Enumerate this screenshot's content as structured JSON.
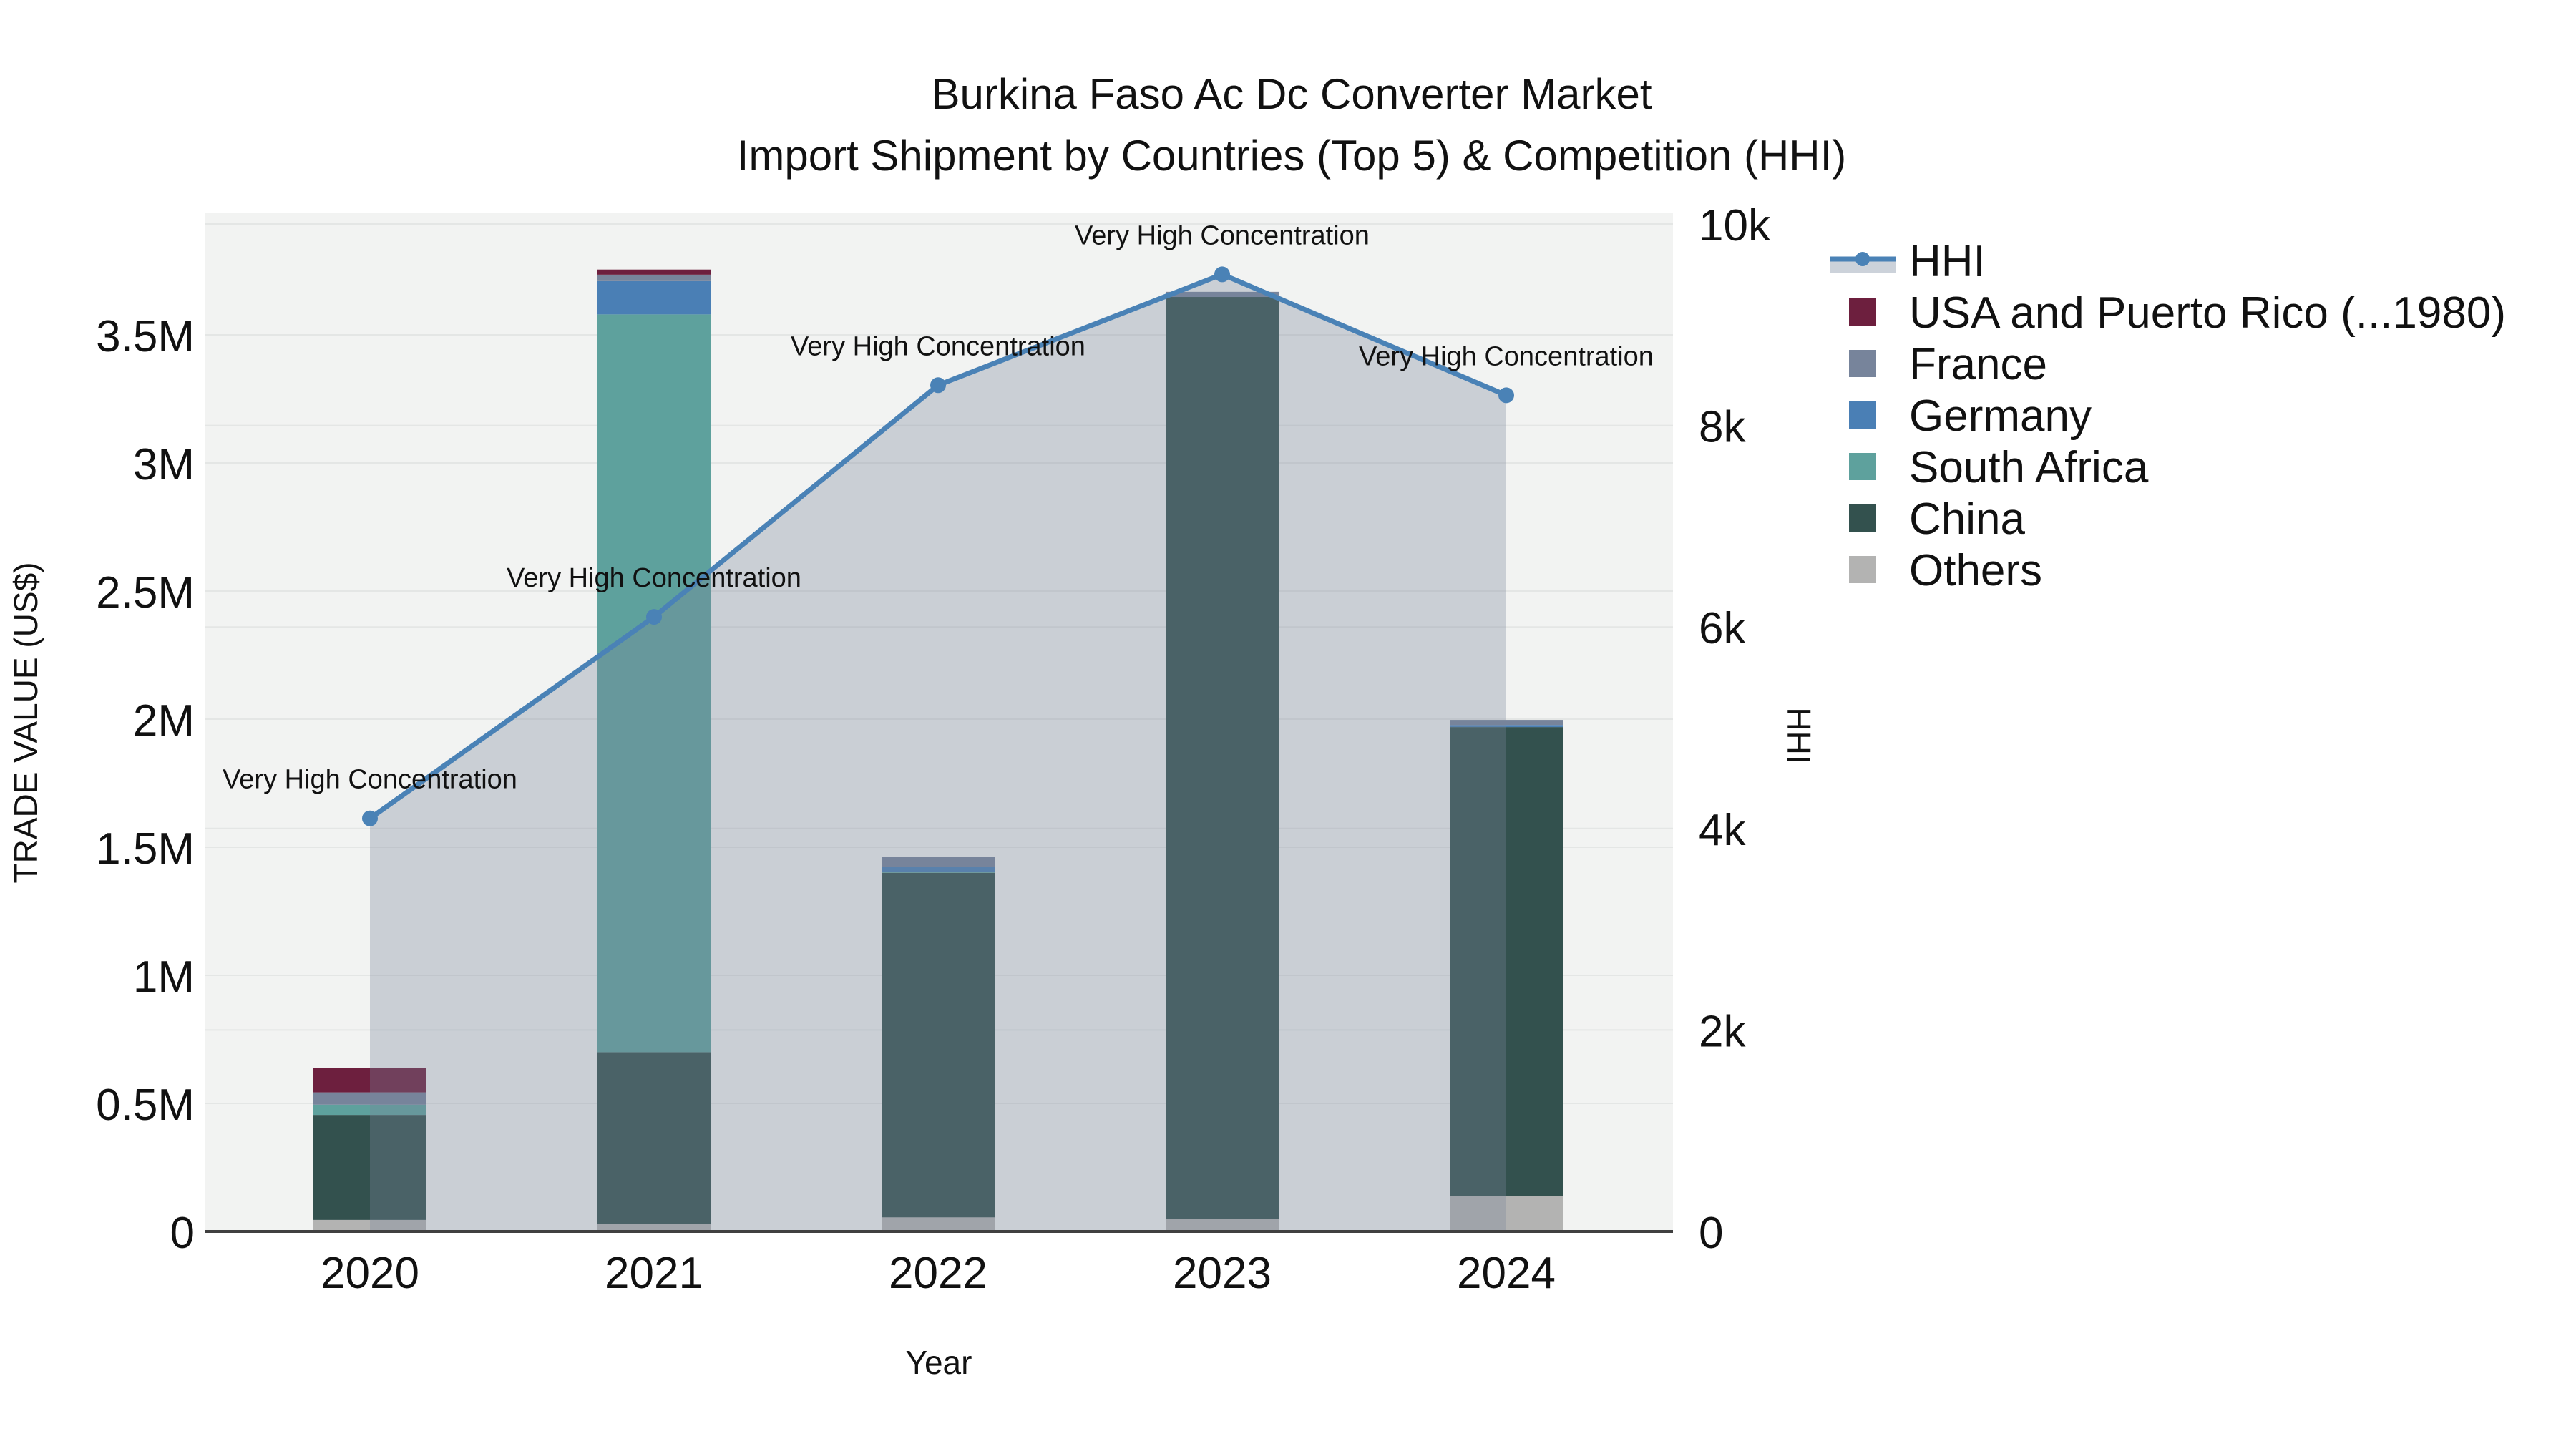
{
  "title": {
    "line1": "Burkina Faso Ac Dc Converter Market",
    "line2": "Import Shipment by Countries (Top 5) & Competition (HHI)"
  },
  "chart_data": {
    "type": "combo: stacked-bar (left axis) + line-area (right axis)",
    "x_categories": [
      "2020",
      "2021",
      "2022",
      "2023",
      "2024"
    ],
    "x_axis": {
      "title": "Year"
    },
    "left_axis": {
      "title": "TRADE VALUE (US$)",
      "tick_labels": [
        "0",
        "0.5M",
        "1M",
        "1.5M",
        "2M",
        "2.5M",
        "3M",
        "3.5M"
      ],
      "tick_values": [
        0,
        500000,
        1000000,
        1500000,
        2000000,
        2500000,
        3000000,
        3500000
      ],
      "range": [
        0,
        3975000
      ],
      "grid": true
    },
    "right_axis": {
      "title": "HHI",
      "tick_labels": [
        "0",
        "2k",
        "4k",
        "6k",
        "8k",
        "10k"
      ],
      "tick_values": [
        0,
        2000,
        4000,
        6000,
        8000,
        10000
      ],
      "range": [
        0,
        10100
      ],
      "grid": true
    },
    "bar_series_stack_bottom_to_top": [
      {
        "name": "Others",
        "color": "#b3b3b2",
        "values_usd": [
          45000,
          30000,
          55000,
          48000,
          137000
        ]
      },
      {
        "name": "China",
        "color": "#33514e",
        "values_usd": [
          410000,
          670000,
          1345000,
          3600000,
          1832000
        ]
      },
      {
        "name": "South Africa",
        "color": "#5ea19d",
        "values_usd": [
          40000,
          2880000,
          5000,
          0,
          0
        ]
      },
      {
        "name": "Germany",
        "color": "#4a7fb5",
        "values_usd": [
          0,
          130000,
          18000,
          0,
          8000
        ]
      },
      {
        "name": "France",
        "color": "#77849b",
        "values_usd": [
          48000,
          25000,
          40000,
          20000,
          20000
        ]
      },
      {
        "name": "USA and Puerto Rico (...1980)",
        "color": "#6d1f3e",
        "values_usd": [
          95000,
          20000,
          0,
          0,
          0
        ]
      }
    ],
    "bar_totals_usd": [
      638000,
      3755000,
      1463000,
      3668000,
      1997000
    ],
    "line_series": {
      "name": "HHI",
      "axis": "right",
      "color": "#4a82b6",
      "area_fill": "rgba(121,134,156,0.33)",
      "values": [
        4100,
        6100,
        8400,
        9500,
        8300
      ]
    },
    "annotations": [
      "Very High Concentration",
      "Very High Concentration",
      "Very High Concentration",
      "Very High Concentration",
      "Very High Concentration"
    ],
    "legend": {
      "position": "top-right",
      "items": [
        {
          "label": "HHI",
          "type": "line",
          "color": "#4a82b6",
          "band": "#ccd2da"
        },
        {
          "label": "USA and Puerto Rico (...1980)",
          "type": "swatch",
          "color": "#6d1f3e"
        },
        {
          "label": "France",
          "type": "swatch",
          "color": "#77849b"
        },
        {
          "label": "Germany",
          "type": "swatch",
          "color": "#4a7fb5"
        },
        {
          "label": "South Africa",
          "type": "swatch",
          "color": "#5ea19d"
        },
        {
          "label": "China",
          "type": "swatch",
          "color": "#33514e"
        },
        {
          "label": "Others",
          "type": "swatch",
          "color": "#b3b3b2"
        }
      ]
    },
    "style": {
      "plot_bg": "#f2f3f2",
      "gridline": "#e4e6e5",
      "axis_line": "#404040",
      "text": "#111111"
    }
  }
}
